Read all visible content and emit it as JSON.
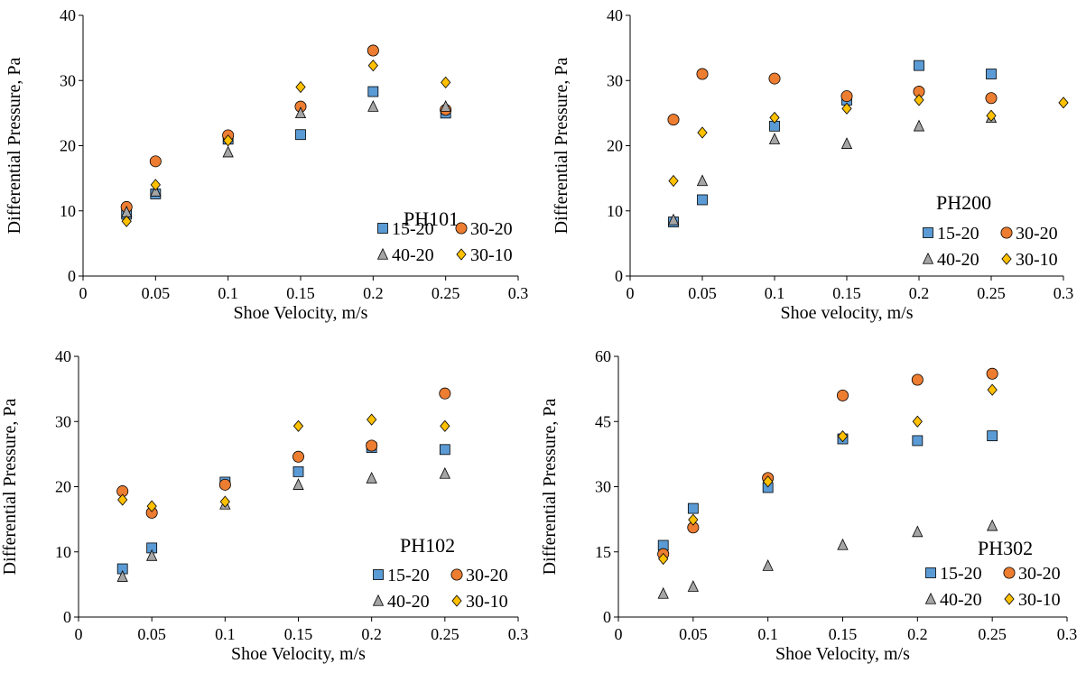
{
  "colors": {
    "s15_20": "#5B9BD5",
    "s30_20": "#ED7D31",
    "s40_20": "#A5A5A5",
    "s30_10": "#FFC000",
    "edge": "#000000",
    "axis": "#000000"
  },
  "chart_data": [
    {
      "type": "scatter",
      "title": "PH101",
      "xlabel": "Shoe Velocity, m/s",
      "ylabel": "Differential Pressure, Pa",
      "xlim": [
        0,
        0.3
      ],
      "ylim": [
        0,
        40
      ],
      "xticks": [
        0,
        0.05,
        0.1,
        0.15,
        0.2,
        0.25,
        0.3
      ],
      "yticks": [
        0,
        10,
        20,
        30,
        40
      ],
      "xtick_labels": [
        "0",
        "0.05",
        "0.1",
        "0.15",
        "0.2",
        "0.25",
        "0.3"
      ],
      "ytick_labels": [
        "0",
        "10",
        "20",
        "30",
        "40"
      ],
      "grid": false,
      "legend_position": "lower-right",
      "series": [
        {
          "name": "15-20",
          "marker": "square",
          "color_key": "s15_20",
          "x": [
            0.03,
            0.05,
            0.1,
            0.15,
            0.2,
            0.25
          ],
          "y": [
            9.5,
            12.6,
            21.0,
            21.7,
            28.3,
            25.0
          ]
        },
        {
          "name": "30-20",
          "marker": "circle",
          "color_key": "s30_20",
          "x": [
            0.03,
            0.05,
            0.1,
            0.15,
            0.2,
            0.25
          ],
          "y": [
            10.6,
            17.6,
            21.6,
            26.0,
            34.6,
            25.5
          ]
        },
        {
          "name": "40-20",
          "marker": "triangle",
          "color_key": "s40_20",
          "x": [
            0.03,
            0.05,
            0.1,
            0.15,
            0.2,
            0.25
          ],
          "y": [
            9.8,
            13.0,
            19.0,
            25.0,
            26.0,
            26.0
          ]
        },
        {
          "name": "30-10",
          "marker": "diamond",
          "color_key": "s30_10",
          "x": [
            0.03,
            0.05,
            0.1,
            0.15,
            0.2,
            0.25
          ],
          "y": [
            8.4,
            14.0,
            20.8,
            29.0,
            32.3,
            29.7
          ]
        }
      ]
    },
    {
      "type": "scatter",
      "title": "PH200",
      "xlabel": "Shoe velocity, m/s",
      "ylabel": "Differential Pressure, Pa",
      "xlim": [
        0,
        0.3
      ],
      "ylim": [
        0,
        40
      ],
      "xticks": [
        0,
        0.05,
        0.1,
        0.15,
        0.2,
        0.25,
        0.3
      ],
      "yticks": [
        0,
        10,
        20,
        30,
        40
      ],
      "xtick_labels": [
        "0",
        "0.05",
        "0.1",
        "0.15",
        "0.2",
        "0.25",
        "0.3"
      ],
      "ytick_labels": [
        "0",
        "10",
        "20",
        "30",
        "40"
      ],
      "grid": false,
      "legend_position": "lower-right",
      "series": [
        {
          "name": "15-20",
          "marker": "square",
          "color_key": "s15_20",
          "x": [
            0.03,
            0.05,
            0.1,
            0.15,
            0.2,
            0.25
          ],
          "y": [
            8.3,
            11.7,
            23.0,
            27.0,
            32.3,
            31.0
          ]
        },
        {
          "name": "30-20",
          "marker": "circle",
          "color_key": "s30_20",
          "x": [
            0.03,
            0.05,
            0.1,
            0.15,
            0.2,
            0.25
          ],
          "y": [
            24.0,
            31.0,
            30.3,
            27.6,
            28.3,
            27.3
          ]
        },
        {
          "name": "40-20",
          "marker": "triangle",
          "color_key": "s40_20",
          "x": [
            0.03,
            0.05,
            0.1,
            0.15,
            0.2,
            0.25
          ],
          "y": [
            8.6,
            14.6,
            21.0,
            20.3,
            23.0,
            24.3
          ]
        },
        {
          "name": "30-10",
          "marker": "diamond",
          "color_key": "s30_10",
          "x": [
            0.03,
            0.05,
            0.1,
            0.15,
            0.2,
            0.25,
            0.3
          ],
          "y": [
            14.6,
            22.0,
            24.3,
            25.7,
            27.0,
            24.6,
            26.6
          ]
        }
      ]
    },
    {
      "type": "scatter",
      "title": "PH102",
      "xlabel": "Shoe Velocity, m/s",
      "ylabel": "Differential Pressure, Pa",
      "xlim": [
        0,
        0.3
      ],
      "ylim": [
        0,
        40
      ],
      "xticks": [
        0,
        0.05,
        0.1,
        0.15,
        0.2,
        0.25,
        0.3
      ],
      "yticks": [
        0,
        10,
        20,
        30,
        40
      ],
      "xtick_labels": [
        "0",
        "0.05",
        "0.1",
        "0.15",
        "0.2",
        "0.25",
        "0.3"
      ],
      "ytick_labels": [
        "0",
        "10",
        "20",
        "30",
        "40"
      ],
      "grid": false,
      "legend_position": "lower-right",
      "series": [
        {
          "name": "15-20",
          "marker": "square",
          "color_key": "s15_20",
          "x": [
            0.03,
            0.05,
            0.1,
            0.15,
            0.2,
            0.25
          ],
          "y": [
            7.4,
            10.6,
            20.7,
            22.3,
            26.0,
            25.7
          ]
        },
        {
          "name": "30-20",
          "marker": "circle",
          "color_key": "s30_20",
          "x": [
            0.03,
            0.05,
            0.1,
            0.15,
            0.2,
            0.25
          ],
          "y": [
            19.3,
            16.0,
            20.3,
            24.6,
            26.3,
            34.3
          ]
        },
        {
          "name": "40-20",
          "marker": "triangle",
          "color_key": "s40_20",
          "x": [
            0.03,
            0.05,
            0.1,
            0.15,
            0.2,
            0.25
          ],
          "y": [
            6.2,
            9.4,
            17.3,
            20.3,
            21.3,
            22.0
          ]
        },
        {
          "name": "30-10",
          "marker": "diamond",
          "color_key": "s30_10",
          "x": [
            0.03,
            0.05,
            0.1,
            0.15,
            0.2,
            0.25
          ],
          "y": [
            18.0,
            17.0,
            17.7,
            29.3,
            30.3,
            29.3
          ]
        }
      ]
    },
    {
      "type": "scatter",
      "title": "PH302",
      "xlabel": "Shoe Velocity, m/s",
      "ylabel": "Differential Pressure, Pa",
      "xlim": [
        0,
        0.3
      ],
      "ylim": [
        0,
        60
      ],
      "xticks": [
        0,
        0.05,
        0.1,
        0.15,
        0.2,
        0.25,
        0.3
      ],
      "yticks": [
        0,
        15,
        30,
        45,
        60
      ],
      "xtick_labels": [
        "0",
        "0.05",
        "0.1",
        "0.15",
        "0.2",
        "0.25",
        "0.3"
      ],
      "ytick_labels": [
        "0",
        "15",
        "30",
        "45",
        "60"
      ],
      "grid": false,
      "legend_position": "lower-right",
      "series": [
        {
          "name": "15-20",
          "marker": "square",
          "color_key": "s15_20",
          "x": [
            0.03,
            0.05,
            0.1,
            0.15,
            0.2,
            0.25
          ],
          "y": [
            16.5,
            25.0,
            29.8,
            41.0,
            40.6,
            41.7
          ]
        },
        {
          "name": "30-20",
          "marker": "circle",
          "color_key": "s30_20",
          "x": [
            0.03,
            0.05,
            0.1,
            0.15,
            0.2,
            0.25
          ],
          "y": [
            14.5,
            20.6,
            32.0,
            51.0,
            54.6,
            56.0
          ]
        },
        {
          "name": "40-20",
          "marker": "triangle",
          "color_key": "s40_20",
          "x": [
            0.03,
            0.05,
            0.1,
            0.15,
            0.2,
            0.25
          ],
          "y": [
            5.4,
            7.0,
            11.8,
            16.6,
            19.6,
            21.0
          ]
        },
        {
          "name": "30-10",
          "marker": "diamond",
          "color_key": "s30_10",
          "x": [
            0.03,
            0.05,
            0.1,
            0.15,
            0.2,
            0.25
          ],
          "y": [
            13.4,
            22.4,
            31.2,
            41.6,
            45.0,
            52.3
          ]
        }
      ]
    }
  ]
}
